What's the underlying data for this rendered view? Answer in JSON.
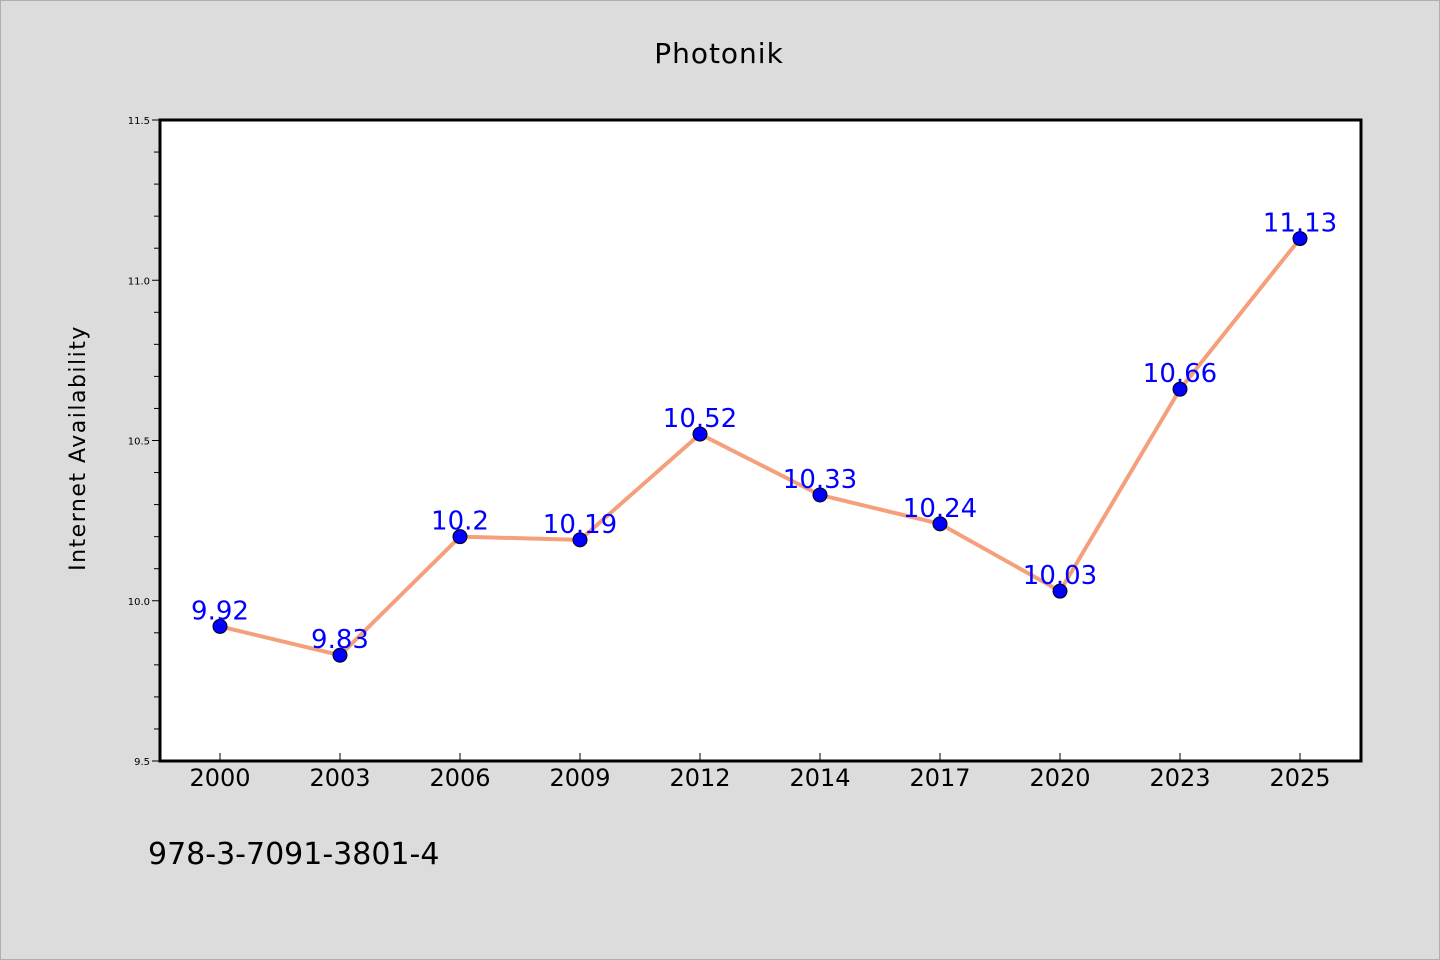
{
  "chart_data": {
    "type": "line",
    "title": "Photonik",
    "xlabel": "",
    "ylabel": "Internet Availability",
    "categories": [
      "2000",
      "2003",
      "2006",
      "2009",
      "2012",
      "2014",
      "2017",
      "2020",
      "2023",
      "2025"
    ],
    "series": [
      {
        "values": [
          9.92,
          9.83,
          10.2,
          10.19,
          10.52,
          10.33,
          10.24,
          10.03,
          10.66,
          11.13
        ],
        "labels": [
          "9.92",
          "9.83",
          "10.2",
          "10.19",
          "10.52",
          "10.33",
          "10.24",
          "10.03",
          "10.66",
          "11.13"
        ],
        "line_color": "#f4a07c",
        "marker_color": "#0000ff",
        "label_color": "#0000ff"
      }
    ],
    "ylim": [
      9.5,
      11.5
    ],
    "yticks": [
      "9.5",
      "10.0",
      "10.5",
      "11.0",
      "11.5"
    ],
    "grid": false,
    "legend": "none",
    "background_color": "#dcdcdc",
    "plot_background": "#ffffff"
  },
  "footer": {
    "isbn": "978-3-7091-3801-4"
  }
}
